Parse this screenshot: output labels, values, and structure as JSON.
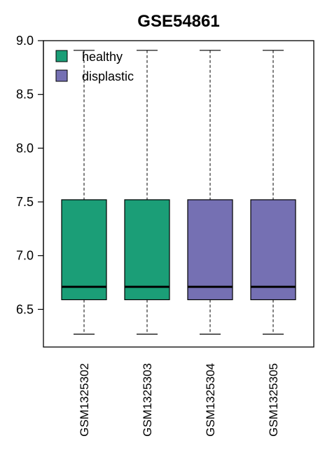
{
  "chart_data": {
    "type": "box",
    "title": "GSE54861",
    "xlabel": "",
    "ylabel": "",
    "ylim": [
      6.2,
      9.0
    ],
    "yticks": [
      "9.0",
      "8.5",
      "8.0",
      "7.5",
      "7.0",
      "6.5"
    ],
    "ytick_values": [
      9.0,
      8.5,
      8.0,
      7.5,
      7.0,
      6.5
    ],
    "categories": [
      "GSM1325302",
      "GSM1325303",
      "GSM1325304",
      "GSM1325305"
    ],
    "boxes": [
      {
        "group": "healthy",
        "min": 6.27,
        "q1": 6.59,
        "median": 6.71,
        "q3": 7.52,
        "max": 8.91
      },
      {
        "group": "healthy",
        "min": 6.27,
        "q1": 6.59,
        "median": 6.71,
        "q3": 7.52,
        "max": 8.91
      },
      {
        "group": "displastic",
        "min": 6.27,
        "q1": 6.59,
        "median": 6.71,
        "q3": 7.52,
        "max": 8.91
      },
      {
        "group": "displastic",
        "min": 6.27,
        "q1": 6.59,
        "median": 6.71,
        "q3": 7.52,
        "max": 8.91
      }
    ],
    "legend": [
      {
        "label": "healthy",
        "color": "#1b9e77"
      },
      {
        "label": "displastic",
        "color": "#7570b3"
      }
    ],
    "legend_position": "top-left",
    "grid": false
  }
}
